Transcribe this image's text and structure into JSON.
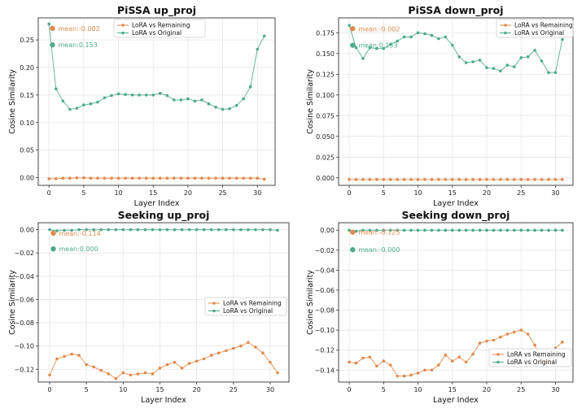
{
  "colors": {
    "remaining": "#e08a4b",
    "original": "#4daa8a"
  },
  "chart_data": [
    {
      "type": "line",
      "title": "PiSSA up_proj",
      "xlabel": "Layer Index",
      "ylabel": "Cosine Similarity",
      "xlim": [
        -1.55,
        32.55
      ],
      "ylim": [
        -0.014,
        0.29
      ],
      "xticks": [
        0,
        5,
        10,
        15,
        20,
        25,
        30
      ],
      "xtick_labels": [
        "0",
        "5",
        "10",
        "15",
        "20",
        "25",
        "30"
      ],
      "yticks": [
        0.0,
        0.05,
        0.1,
        0.15,
        0.2,
        0.25
      ],
      "ytick_labels": [
        "0.00",
        "0.05",
        "0.10",
        "0.15",
        "0.20",
        "0.25"
      ],
      "legend_position": "top-center",
      "grid": true,
      "x": [
        0,
        1,
        2,
        3,
        4,
        5,
        6,
        7,
        8,
        9,
        10,
        11,
        12,
        13,
        14,
        15,
        16,
        17,
        18,
        19,
        20,
        21,
        22,
        23,
        24,
        25,
        26,
        27,
        28,
        29,
        30,
        31
      ],
      "series": [
        {
          "name": "LoRA vs Remaining",
          "color": "#e08a4b",
          "values": [
            -0.002,
            -0.002,
            -0.001,
            -0.001,
            -0.0005,
            -0.0005,
            -0.001,
            -0.001,
            -0.001,
            -0.001,
            -0.001,
            -0.001,
            -0.001,
            -0.001,
            -0.001,
            -0.001,
            -0.001,
            -0.001,
            -0.001,
            -0.001,
            -0.001,
            -0.001,
            -0.001,
            -0.001,
            -0.001,
            -0.001,
            -0.001,
            -0.001,
            -0.001,
            -0.001,
            -0.001,
            -0.003
          ]
        },
        {
          "name": "LoRA vs Original",
          "color": "#4daa8a",
          "values": [
            0.279,
            0.161,
            0.139,
            0.124,
            0.126,
            0.132,
            0.134,
            0.137,
            0.145,
            0.149,
            0.152,
            0.151,
            0.15,
            0.15,
            0.15,
            0.15,
            0.153,
            0.149,
            0.141,
            0.141,
            0.143,
            0.139,
            0.141,
            0.134,
            0.128,
            0.124,
            0.125,
            0.131,
            0.143,
            0.165,
            0.233,
            0.257
          ]
        }
      ],
      "annotations": [
        {
          "text": "mean:-0.002",
          "x": 0.5,
          "y": 0.271,
          "color": "#e08a4b"
        },
        {
          "text": "mean:0.153",
          "x": 0.5,
          "y": 0.241,
          "color": "#4daa8a"
        }
      ]
    },
    {
      "type": "line",
      "title": "PiSSA down_proj",
      "xlabel": "Layer Index",
      "ylabel": "Cosine Similarity",
      "xlim": [
        -1.55,
        32.55
      ],
      "ylim": [
        -0.009,
        0.193
      ],
      "xticks": [
        0,
        5,
        10,
        15,
        20,
        25,
        30
      ],
      "xtick_labels": [
        "0",
        "5",
        "10",
        "15",
        "20",
        "25",
        "30"
      ],
      "yticks": [
        0.0,
        0.025,
        0.05,
        0.075,
        0.1,
        0.125,
        0.15,
        0.175
      ],
      "ytick_labels": [
        "0.000",
        "0.025",
        "0.050",
        "0.075",
        "0.100",
        "0.125",
        "0.150",
        "0.175"
      ],
      "legend_position": "top-right",
      "grid": true,
      "x": [
        0,
        1,
        2,
        3,
        4,
        5,
        6,
        7,
        8,
        9,
        10,
        11,
        12,
        13,
        14,
        15,
        16,
        17,
        18,
        19,
        20,
        21,
        22,
        23,
        24,
        25,
        26,
        27,
        28,
        29,
        30,
        31
      ],
      "series": [
        {
          "name": "LoRA vs Remaining",
          "color": "#e08a4b",
          "values": [
            -0.002,
            -0.002,
            -0.002,
            -0.002,
            -0.002,
            -0.002,
            -0.002,
            -0.002,
            -0.002,
            -0.002,
            -0.002,
            -0.002,
            -0.002,
            -0.002,
            -0.002,
            -0.002,
            -0.002,
            -0.002,
            -0.002,
            -0.002,
            -0.002,
            -0.002,
            -0.002,
            -0.002,
            -0.002,
            -0.002,
            -0.002,
            -0.002,
            -0.002,
            -0.002,
            -0.002,
            -0.002
          ]
        },
        {
          "name": "LoRA vs Original",
          "color": "#4daa8a",
          "values": [
            0.184,
            0.157,
            0.144,
            0.157,
            0.156,
            0.156,
            0.161,
            0.165,
            0.17,
            0.17,
            0.175,
            0.174,
            0.172,
            0.168,
            0.17,
            0.16,
            0.146,
            0.139,
            0.14,
            0.142,
            0.133,
            0.132,
            0.129,
            0.136,
            0.134,
            0.145,
            0.146,
            0.154,
            0.141,
            0.127,
            0.127,
            0.167
          ]
        }
      ],
      "annotations": [
        {
          "text": "mean:-0.002",
          "x": 0.5,
          "y": 0.18,
          "color": "#e08a4b"
        },
        {
          "text": "mean:0.153",
          "x": 0.5,
          "y": 0.16,
          "color": "#4daa8a"
        }
      ]
    },
    {
      "type": "line",
      "title": "Seeking up_proj",
      "xlabel": "Layer Index",
      "ylabel": "Cosine Similarity",
      "xlim": [
        -1.55,
        32.55
      ],
      "ylim": [
        -0.131,
        0.006
      ],
      "xticks": [
        0,
        5,
        10,
        15,
        20,
        25,
        30
      ],
      "xtick_labels": [
        "0",
        "5",
        "10",
        "15",
        "20",
        "25",
        "30"
      ],
      "yticks": [
        0.0,
        -0.02,
        -0.04,
        -0.06,
        -0.08,
        -0.1,
        -0.12
      ],
      "ytick_labels": [
        "0.00",
        "−0.02",
        "−0.04",
        "−0.06",
        "−0.08",
        "−0.10",
        "−0.12"
      ],
      "legend_position": "center-right",
      "grid": true,
      "x": [
        0,
        1,
        2,
        3,
        4,
        5,
        6,
        7,
        8,
        9,
        10,
        11,
        12,
        13,
        14,
        15,
        16,
        17,
        18,
        19,
        20,
        21,
        22,
        23,
        24,
        25,
        26,
        27,
        28,
        29,
        30,
        31
      ],
      "series": [
        {
          "name": "LoRA vs Remaining",
          "color": "#e08a4b",
          "values": [
            -0.125,
            -0.111,
            -0.109,
            -0.107,
            -0.108,
            -0.116,
            -0.118,
            -0.121,
            -0.124,
            -0.128,
            -0.123,
            -0.125,
            -0.124,
            -0.123,
            -0.124,
            -0.119,
            -0.116,
            -0.114,
            -0.119,
            -0.115,
            -0.113,
            -0.111,
            -0.108,
            -0.106,
            -0.104,
            -0.102,
            -0.1,
            -0.097,
            -0.101,
            -0.106,
            -0.114,
            -0.123
          ]
        },
        {
          "name": "LoRA vs Original",
          "color": "#4daa8a",
          "values": [
            0.0,
            -0.001,
            -0.0005,
            -0.0005,
            0.0,
            0.0,
            0.0,
            0.0,
            0.0,
            0.0,
            0.0,
            0.0,
            0.0,
            0.0,
            0.0,
            0.0,
            0.0,
            0.0,
            0.0,
            0.0,
            0.0,
            0.0,
            0.0,
            0.0,
            0.0,
            0.0,
            0.0,
            0.0,
            0.0,
            0.0,
            0.0,
            -0.0005
          ]
        }
      ],
      "annotations": [
        {
          "text": "mean:-0.114",
          "x": 0.5,
          "y": -0.003,
          "color": "#e08a4b"
        },
        {
          "text": "mean:0.000",
          "x": 0.5,
          "y": -0.0165,
          "color": "#4daa8a"
        }
      ]
    },
    {
      "type": "line",
      "title": "Seeking down_proj",
      "xlabel": "Layer Index",
      "ylabel": "Cosine Similarity",
      "xlim": [
        -1.55,
        32.55
      ],
      "ylim": [
        -0.152,
        0.0075
      ],
      "xticks": [
        0,
        5,
        10,
        15,
        20,
        25,
        30
      ],
      "xtick_labels": [
        "0",
        "5",
        "10",
        "15",
        "20",
        "25",
        "30"
      ],
      "yticks": [
        0.0,
        -0.02,
        -0.04,
        -0.06,
        -0.08,
        -0.1,
        -0.12,
        -0.14
      ],
      "ytick_labels": [
        "0.00",
        "−0.02",
        "−0.04",
        "−0.06",
        "−0.08",
        "−0.10",
        "−0.12",
        "−0.14"
      ],
      "legend_position": "lower-right",
      "grid": true,
      "x": [
        0,
        1,
        2,
        3,
        4,
        5,
        6,
        7,
        8,
        9,
        10,
        11,
        12,
        13,
        14,
        15,
        16,
        17,
        18,
        19,
        20,
        21,
        22,
        23,
        24,
        25,
        26,
        27,
        28,
        29,
        30,
        31
      ],
      "series": [
        {
          "name": "LoRA vs Remaining",
          "color": "#e08a4b",
          "values": [
            -0.132,
            -0.133,
            -0.128,
            -0.127,
            -0.136,
            -0.131,
            -0.135,
            -0.146,
            -0.146,
            -0.145,
            -0.143,
            -0.14,
            -0.14,
            -0.135,
            -0.125,
            -0.131,
            -0.127,
            -0.132,
            -0.124,
            -0.113,
            -0.111,
            -0.11,
            -0.107,
            -0.104,
            -0.102,
            -0.1,
            -0.104,
            -0.115,
            -0.131,
            -0.132,
            -0.118,
            -0.112
          ]
        },
        {
          "name": "LoRA vs Original",
          "color": "#4daa8a",
          "values": [
            0.0,
            -0.001,
            0.0,
            0.0,
            0.0,
            0.0,
            0.0,
            0.0,
            0.0,
            0.0,
            0.0,
            0.0,
            0.0,
            0.0,
            0.0,
            0.0,
            0.0,
            0.0,
            0.0,
            0.0,
            0.0,
            0.0,
            0.0,
            0.0,
            0.0,
            0.0,
            0.0,
            0.0,
            0.0,
            0.0,
            0.0,
            0.0
          ]
        }
      ],
      "annotations": [
        {
          "text": "mean:-0.125",
          "x": 0.5,
          "y": -0.002,
          "color": "#e08a4b"
        },
        {
          "text": "mean:-0.000",
          "x": 0.5,
          "y": -0.0195,
          "color": "#4daa8a"
        }
      ]
    }
  ]
}
